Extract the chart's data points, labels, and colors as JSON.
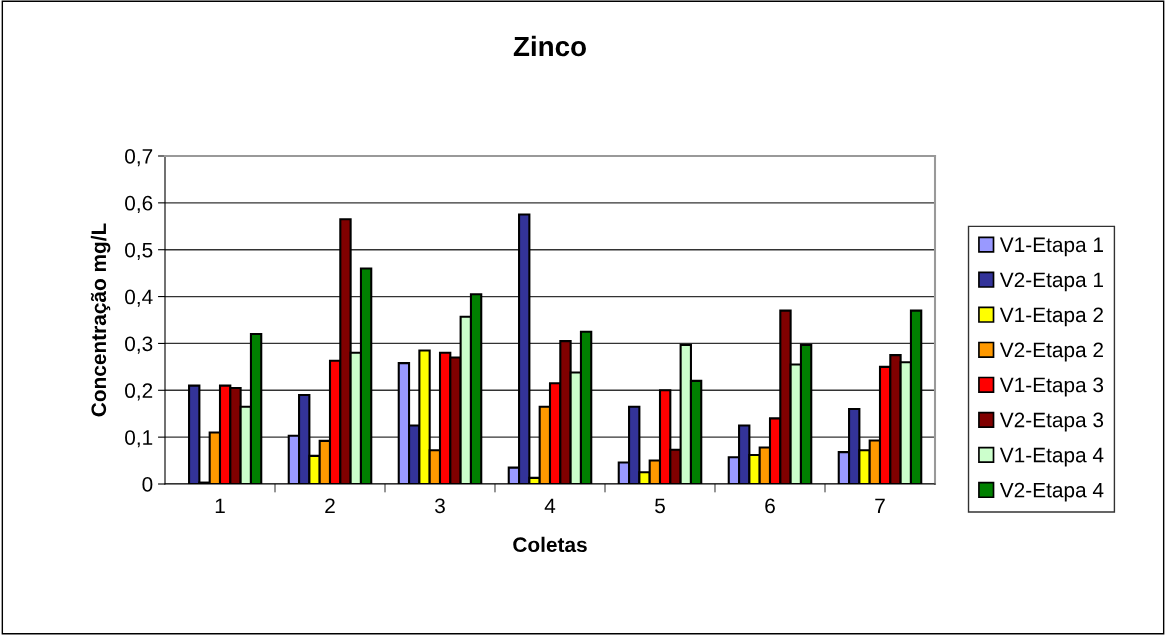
{
  "chart_data": {
    "type": "bar",
    "title": "Zinco",
    "xlabel": "Coletas",
    "ylabel": "Concentração mg/L",
    "categories": [
      "1",
      "2",
      "3",
      "4",
      "5",
      "6",
      "7"
    ],
    "series": [
      {
        "name": "V1-Etapa 1",
        "color": "#9999ff",
        "values": [
          null,
          0.103,
          0.258,
          0.035,
          0.046,
          0.057,
          0.068
        ]
      },
      {
        "name": "V2-Etapa 1",
        "color": "#333399",
        "values": [
          0.21,
          0.19,
          0.125,
          0.575,
          0.165,
          0.125,
          0.16
        ]
      },
      {
        "name": "V1-Etapa 2",
        "color": "#ffff00",
        "values": [
          0.003,
          0.06,
          0.285,
          0.013,
          0.025,
          0.062,
          0.072
        ]
      },
      {
        "name": "V2-Etapa 2",
        "color": "#ff9900",
        "values": [
          0.11,
          0.092,
          0.072,
          0.165,
          0.05,
          0.078,
          0.093
        ]
      },
      {
        "name": "V1-Etapa 3",
        "color": "#ff0000",
        "values": [
          0.21,
          0.263,
          0.28,
          0.215,
          0.2,
          0.14,
          0.25
        ]
      },
      {
        "name": "V2-Etapa 3",
        "color": "#800000",
        "values": [
          0.205,
          0.565,
          0.27,
          0.305,
          0.073,
          0.37,
          0.275
        ]
      },
      {
        "name": "V1-Etapa 4",
        "color": "#ccffcc",
        "values": [
          0.165,
          0.28,
          0.357,
          0.238,
          0.297,
          0.255,
          0.26
        ]
      },
      {
        "name": "V2-Etapa 4",
        "color": "#008000",
        "values": [
          0.32,
          0.46,
          0.405,
          0.325,
          0.22,
          0.297,
          0.37
        ]
      }
    ],
    "ylim": [
      0,
      0.7
    ],
    "yticks": [
      {
        "value": 0,
        "label": "0"
      },
      {
        "value": 0.1,
        "label": "0,1"
      },
      {
        "value": 0.2,
        "label": "0,2"
      },
      {
        "value": 0.3,
        "label": "0,3"
      },
      {
        "value": 0.4,
        "label": "0,4"
      },
      {
        "value": 0.5,
        "label": "0,5"
      },
      {
        "value": 0.6,
        "label": "0,6"
      },
      {
        "value": 0.7,
        "label": "0,7"
      }
    ],
    "grid": "y",
    "legend": "right"
  }
}
